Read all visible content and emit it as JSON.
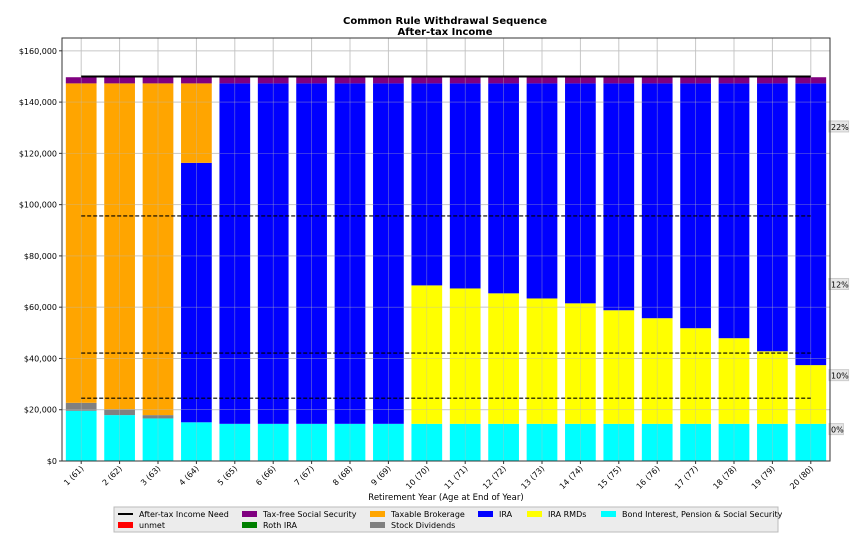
{
  "chart_data": {
    "type": "bar",
    "stacked": true,
    "title": "Common Rule Withdrawal Sequence",
    "subtitle": "After-tax Income",
    "xlabel": "Retirement Year (Age at End of Year)",
    "ylabel": "",
    "ylim": [
      0,
      165000
    ],
    "yticks": [
      "$0",
      "$20,000",
      "$40,000",
      "$60,000",
      "$80,000",
      "$100,000",
      "$120,000",
      "$140,000",
      "$160,000"
    ],
    "grid": true,
    "legend_placement": "bottom",
    "categories": [
      "1 (61)",
      "2 (62)",
      "3 (63)",
      "4 (64)",
      "5 (65)",
      "6 (66)",
      "7 (67)",
      "8 (68)",
      "9 (69)",
      "10 (70)",
      "11 (71)",
      "12 (72)",
      "13 (73)",
      "14 (74)",
      "15 (75)",
      "16 (76)",
      "17 (77)",
      "18 (78)",
      "19 (79)",
      "20 (80)"
    ],
    "series": [
      {
        "name": "Bond Interest, Pension & Social Security",
        "color": "#00ffff",
        "values": [
          19600,
          17900,
          16600,
          15100,
          14500,
          14500,
          14500,
          14500,
          14500,
          14500,
          14500,
          14500,
          14500,
          14500,
          14500,
          14500,
          14500,
          14500,
          14500,
          14500
        ]
      },
      {
        "name": "Stock Dividends",
        "color": "#808080",
        "values": [
          3100,
          2300,
          1300,
          0,
          0,
          0,
          0,
          0,
          0,
          0,
          0,
          0,
          0,
          0,
          0,
          0,
          0,
          0,
          0,
          0
        ]
      },
      {
        "name": "IRA RMDs",
        "color": "#ffff00",
        "values": [
          0,
          0,
          0,
          0,
          0,
          0,
          0,
          0,
          0,
          54000,
          52800,
          50900,
          48900,
          47000,
          44300,
          41200,
          37300,
          33400,
          28300,
          22900
        ]
      },
      {
        "name": "IRA",
        "color": "#0000ff",
        "values": [
          0,
          0,
          0,
          101200,
          132800,
          132800,
          132800,
          132800,
          132800,
          78800,
          80000,
          81900,
          83900,
          85800,
          88500,
          91600,
          95500,
          99400,
          104500,
          109900
        ]
      },
      {
        "name": "Taxable Brokerage",
        "color": "#ffa500",
        "values": [
          124600,
          127100,
          129400,
          31000,
          0,
          0,
          0,
          0,
          0,
          0,
          0,
          0,
          0,
          0,
          0,
          0,
          0,
          0,
          0,
          0
        ]
      },
      {
        "name": "Roth IRA",
        "color": "#008000",
        "values": [
          0,
          0,
          0,
          0,
          0,
          0,
          0,
          0,
          0,
          0,
          0,
          0,
          0,
          0,
          0,
          0,
          0,
          0,
          0,
          0
        ]
      },
      {
        "name": "Tax-free Social Security",
        "color": "#800080",
        "values": [
          2400,
          2400,
          2400,
          2400,
          2400,
          2400,
          2400,
          2400,
          2400,
          2400,
          2400,
          2400,
          2400,
          2400,
          2400,
          2400,
          2400,
          2400,
          2400,
          2400
        ]
      },
      {
        "name": "unmet",
        "color": "#ff0000",
        "values": [
          0,
          0,
          0,
          0,
          0,
          0,
          0,
          0,
          0,
          0,
          0,
          0,
          0,
          0,
          0,
          0,
          0,
          0,
          0,
          0
        ]
      }
    ],
    "need_line": {
      "name": "After-tax Income Need",
      "color": "#000000",
      "value": 150000
    },
    "tax_brackets": [
      {
        "label": "0%",
        "lower": 0,
        "upper": 24500
      },
      {
        "label": "10%",
        "lower": 24500,
        "upper": 42100
      },
      {
        "label": "12%",
        "lower": 42100,
        "upper": 95600
      },
      {
        "label": "22%",
        "lower": 95600,
        "upper": null
      }
    ],
    "legend": [
      {
        "name": "After-tax Income Need",
        "color": "#000000",
        "kind": "line"
      },
      {
        "name": "unmet",
        "color": "#ff0000",
        "kind": "patch"
      },
      {
        "name": "Tax-free Social Security",
        "color": "#800080",
        "kind": "patch"
      },
      {
        "name": "Roth IRA",
        "color": "#008000",
        "kind": "patch"
      },
      {
        "name": "Taxable Brokerage",
        "color": "#ffa500",
        "kind": "patch"
      },
      {
        "name": "Stock Dividends",
        "color": "#808080",
        "kind": "patch"
      },
      {
        "name": "IRA",
        "color": "#0000ff",
        "kind": "patch"
      },
      {
        "name": "IRA RMDs",
        "color": "#ffff00",
        "kind": "patch"
      },
      {
        "name": "Bond Interest, Pension & Social Security",
        "color": "#00ffff",
        "kind": "patch"
      }
    ]
  }
}
